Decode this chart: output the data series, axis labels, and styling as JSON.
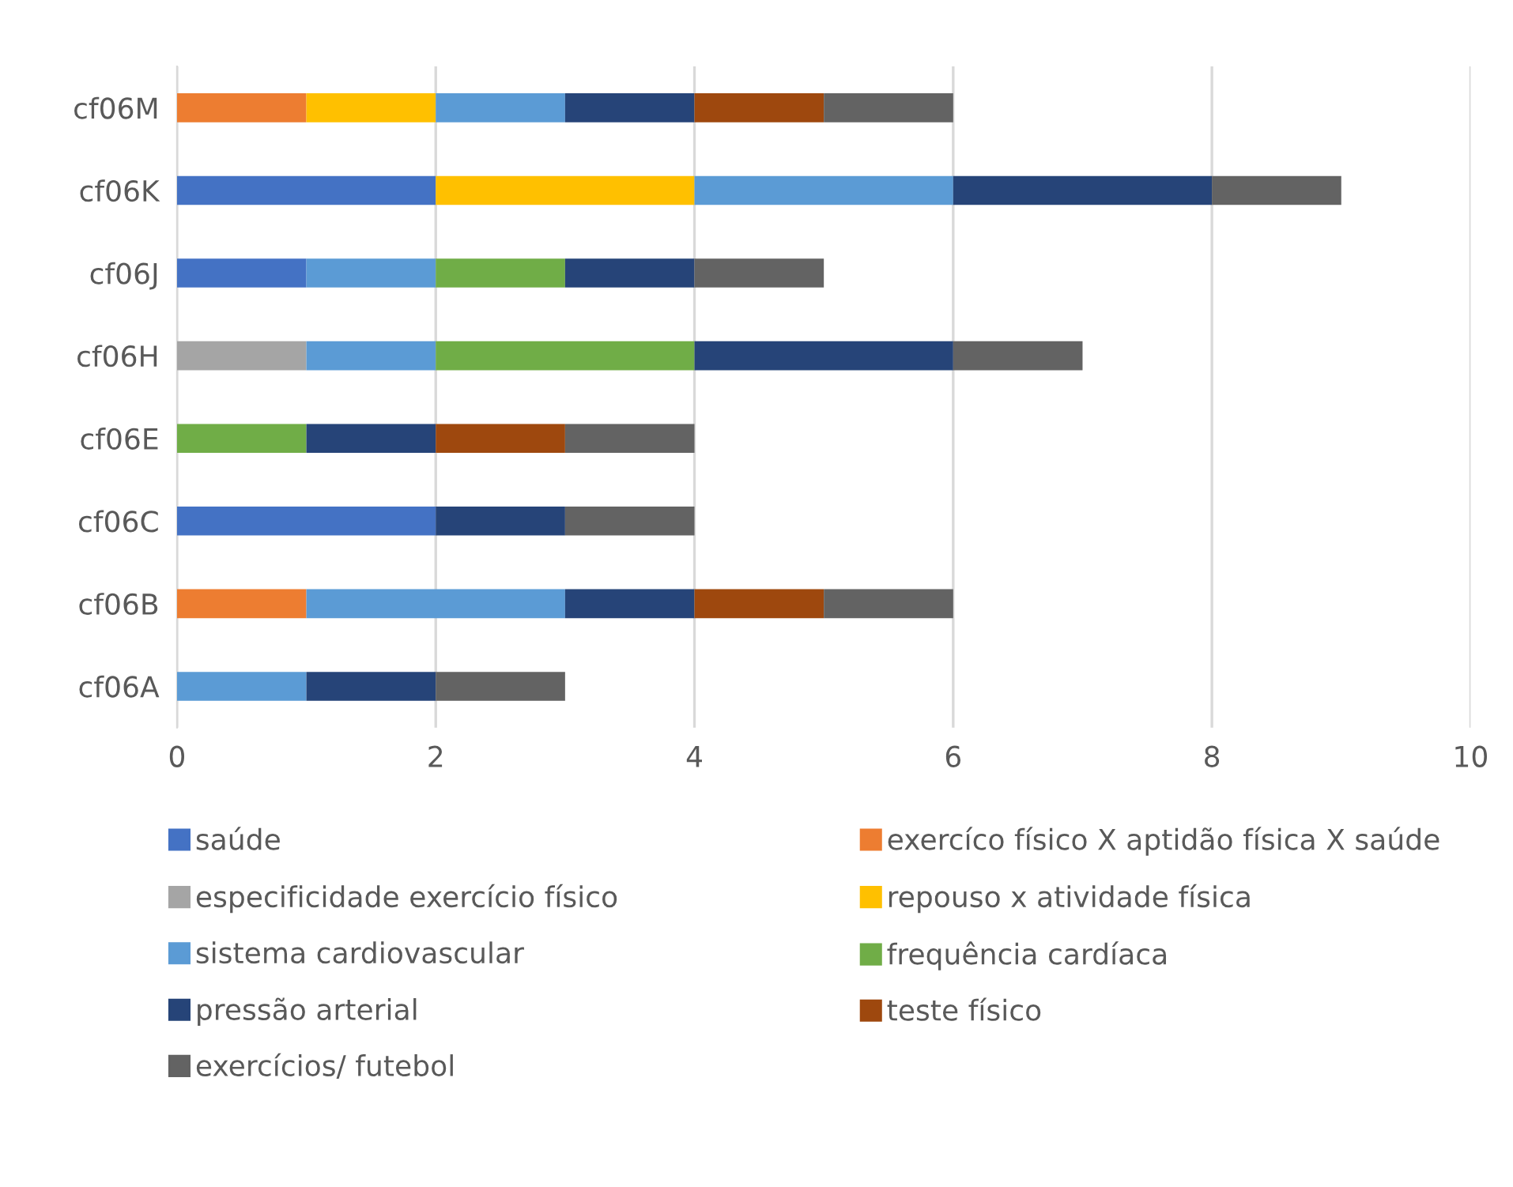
{
  "chart_data": {
    "type": "bar",
    "orientation": "horizontal",
    "stacked": true,
    "categories": [
      "cf06M",
      "cf06K",
      "cf06J",
      "cf06H",
      "cf06E",
      "cf06C",
      "cf06B",
      "cf06A"
    ],
    "series": [
      {
        "name": "saúde",
        "color": "#4472c4",
        "values": [
          0,
          2,
          1,
          0,
          0,
          2,
          0,
          0
        ]
      },
      {
        "name": "exercíco físico X aptidão física X saúde",
        "color": "#ed7d31",
        "values": [
          1,
          0,
          0,
          0,
          0,
          0,
          1,
          0
        ]
      },
      {
        "name": "especificidade exercício físico",
        "color": "#a5a5a5",
        "values": [
          0,
          0,
          0,
          1,
          0,
          0,
          0,
          0
        ]
      },
      {
        "name": "repouso x atividade física",
        "color": "#ffc000",
        "values": [
          1,
          2,
          0,
          0,
          0,
          0,
          0,
          0
        ]
      },
      {
        "name": "sistema cardiovascular",
        "color": "#5b9bd5",
        "values": [
          1,
          2,
          1,
          1,
          0,
          0,
          2,
          1
        ]
      },
      {
        "name": "frequência cardíaca",
        "color": "#70ad47",
        "values": [
          0,
          0,
          1,
          2,
          1,
          0,
          0,
          0
        ]
      },
      {
        "name": "pressão arterial",
        "color": "#264478",
        "values": [
          1,
          2,
          1,
          2,
          1,
          1,
          1,
          1
        ]
      },
      {
        "name": "teste físico",
        "color": "#9e480e",
        "values": [
          1,
          0,
          0,
          0,
          1,
          0,
          1,
          0
        ]
      },
      {
        "name": "exercícios/ futebol",
        "color": "#636363",
        "values": [
          1,
          1,
          1,
          1,
          1,
          1,
          1,
          1
        ]
      }
    ],
    "xlim": [
      0,
      10
    ],
    "xticks": [
      0,
      2,
      4,
      6,
      8,
      10
    ],
    "grid": "x",
    "legend": "bottom"
  }
}
